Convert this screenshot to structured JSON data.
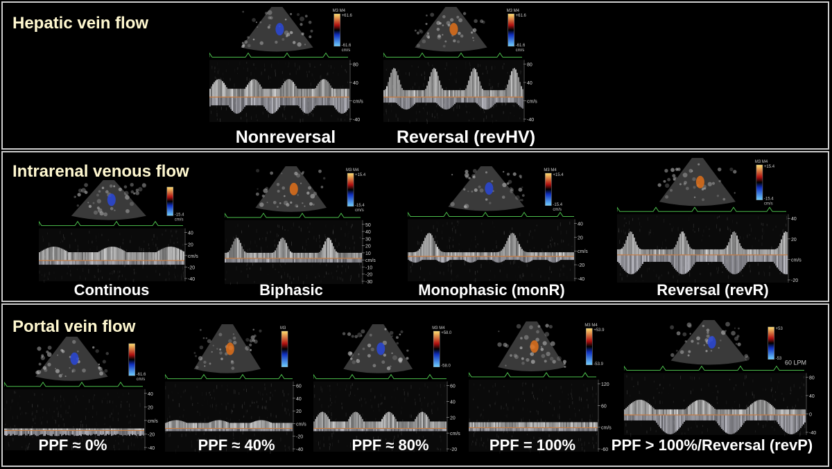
{
  "sections": {
    "hepatic": {
      "title": "Hepatic vein flow",
      "items": [
        {
          "label": "Nonreversal",
          "scale_top": "+61.6",
          "scale_bottom": "-61.6",
          "scale_unit": "cm/s",
          "mode": "M3 M4",
          "ticks": [
            "80",
            "40",
            "cm/s",
            "-40"
          ]
        },
        {
          "label": "Reversal (revHV)",
          "scale_top": "+61.6",
          "scale_bottom": "-61.6",
          "scale_unit": "cm/s",
          "mode": "M3 M4",
          "ticks": [
            "80",
            "40",
            "cm/s",
            "-40"
          ]
        }
      ]
    },
    "renal": {
      "title": "Intrarenal venous flow",
      "items": [
        {
          "label": "Continous",
          "scale_top": "",
          "scale_bottom": "-15.4",
          "scale_unit": "cm/s",
          "mode": "",
          "ticks": [
            "40",
            "20",
            "cm/s",
            "-20",
            "-40"
          ]
        },
        {
          "label": "Biphasic",
          "scale_top": "+15.4",
          "scale_bottom": "-15.4",
          "scale_unit": "cm/s",
          "mode": "M3 M4",
          "ticks": [
            "50",
            "40",
            "30",
            "20",
            "10",
            "cm/s",
            "-10",
            "-20",
            "-30"
          ]
        },
        {
          "label": "Monophasic (monR)",
          "scale_top": "+15.4",
          "scale_bottom": "-15.4",
          "scale_unit": "cm/s",
          "mode": "M3 M4",
          "ticks": [
            "40",
            "20",
            "cm/s",
            "-20",
            "-40"
          ]
        },
        {
          "label": "Reversal (revR)",
          "scale_top": "+15.4",
          "scale_bottom": "-15.4",
          "scale_unit": "cm/s",
          "mode": "M3 M4",
          "ticks": [
            "40",
            "20",
            "cm/s",
            "-20"
          ]
        }
      ]
    },
    "portal": {
      "title": "Portal vein flow",
      "items": [
        {
          "label": "PPF ≈ 0%",
          "scale_top": "",
          "scale_bottom": "-61.6",
          "scale_unit": "cm/s",
          "mode": "",
          "ticks": [
            "40",
            "20",
            "cm/s",
            "-20",
            "-40"
          ]
        },
        {
          "label": "PPF ≈ 40%",
          "scale_top": "",
          "scale_bottom": "",
          "scale_unit": "",
          "mode": "M3",
          "ticks": [
            "60",
            "40",
            "20",
            "cm/s",
            "-20",
            "-40"
          ]
        },
        {
          "label": "PPF ≈ 80%",
          "scale_top": "+58.0",
          "scale_bottom": "-58.0",
          "scale_unit": "",
          "mode": "M3 M4",
          "ticks": [
            "60",
            "40",
            "20",
            "cm/s",
            "-20"
          ]
        },
        {
          "label": "PPF = 100%",
          "scale_top": "+53.9",
          "scale_bottom": "-53.9",
          "scale_unit": "",
          "mode": "M3 M4",
          "ticks": [
            "120",
            "60",
            "cm/s",
            "-60"
          ]
        },
        {
          "label": "PPF > 100%/Reversal (revP)",
          "scale_top": "+53",
          "scale_bottom": "-53",
          "scale_unit": "",
          "mode": "",
          "ticks": [
            "80",
            "40",
            "0",
            "-40"
          ],
          "lpm": "60 LPM"
        }
      ]
    }
  }
}
